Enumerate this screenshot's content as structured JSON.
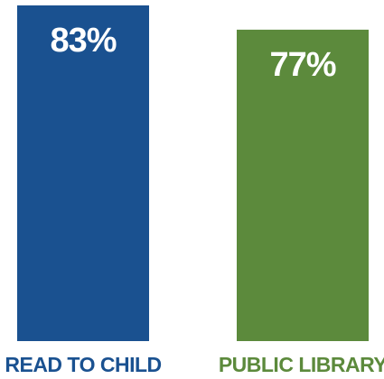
{
  "chart_data": {
    "type": "bar",
    "categories": [
      "READ TO CHILD",
      "PUBLIC LIBRARY"
    ],
    "values": [
      83,
      77
    ],
    "value_labels": [
      "83%",
      "77%"
    ],
    "unit": "%",
    "colors": [
      "#1a5190",
      "#5c8a3c"
    ],
    "label_colors": [
      "#1a5190",
      "#5c8a3c"
    ],
    "ylim": [
      0,
      83
    ],
    "grid": false,
    "legend": "none"
  }
}
